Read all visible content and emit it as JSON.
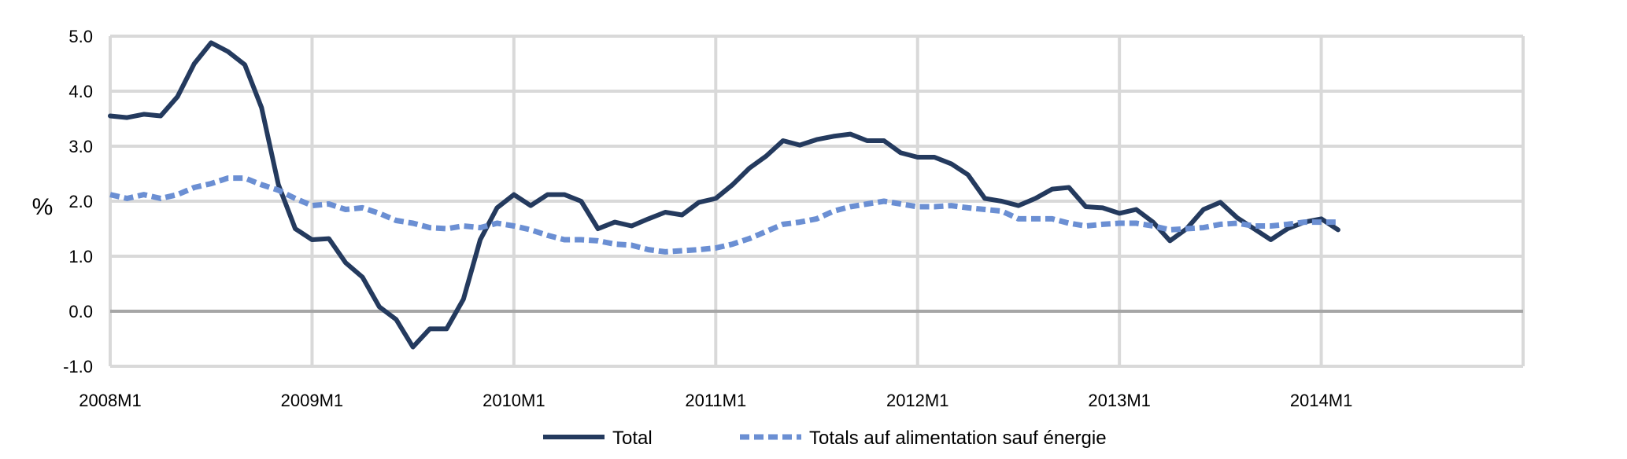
{
  "chart_data": {
    "type": "line",
    "ylabel": "%",
    "xlabel": "",
    "title": "",
    "ylim": [
      -1.0,
      5.0
    ],
    "yticks": [
      "-1.0",
      "0.0",
      "1.0",
      "2.0",
      "3.0",
      "4.0",
      "5.0"
    ],
    "x_tick_labels": [
      "2008M1",
      "2009M1",
      "2010M1",
      "2011M1",
      "2012M1",
      "2013M1",
      "2014M1"
    ],
    "x_start": "2008M1",
    "x_end": "2014M12",
    "grid": true,
    "legend_position": "bottom",
    "series": [
      {
        "name": "Total",
        "color": "#243a5e",
        "style": "solid",
        "values": [
          3.55,
          3.52,
          3.58,
          3.55,
          3.9,
          4.5,
          4.88,
          4.72,
          4.48,
          3.7,
          2.3,
          1.5,
          1.3,
          1.32,
          0.88,
          0.62,
          0.08,
          -0.15,
          -0.65,
          -0.32,
          -0.32,
          0.22,
          1.3,
          1.88,
          2.12,
          1.92,
          2.12,
          2.12,
          2.0,
          1.5,
          1.62,
          1.55,
          1.68,
          1.8,
          1.75,
          1.98,
          2.05,
          2.3,
          2.6,
          2.82,
          3.1,
          3.02,
          3.12,
          3.18,
          3.22,
          3.1,
          3.1,
          2.88,
          2.8,
          2.8,
          2.68,
          2.48,
          2.05,
          2.0,
          1.92,
          2.05,
          2.22,
          2.25,
          1.9,
          1.88,
          1.78,
          1.85,
          1.62,
          1.28,
          1.5,
          1.85,
          1.98,
          1.7,
          1.5,
          1.3,
          1.5,
          1.62,
          1.68,
          1.48
        ]
      },
      {
        "name": "Totals auf alimentation sauf énergie",
        "color": "#6b8fd3",
        "style": "dashed",
        "values": [
          2.12,
          2.05,
          2.12,
          2.05,
          2.12,
          2.25,
          2.32,
          2.42,
          2.42,
          2.3,
          2.2,
          2.05,
          1.92,
          1.95,
          1.85,
          1.88,
          1.78,
          1.65,
          1.6,
          1.52,
          1.5,
          1.55,
          1.52,
          1.6,
          1.55,
          1.48,
          1.38,
          1.3,
          1.3,
          1.28,
          1.22,
          1.2,
          1.12,
          1.08,
          1.1,
          1.12,
          1.15,
          1.22,
          1.32,
          1.45,
          1.58,
          1.62,
          1.68,
          1.82,
          1.9,
          1.95,
          2.0,
          1.95,
          1.9,
          1.9,
          1.92,
          1.88,
          1.85,
          1.82,
          1.68,
          1.68,
          1.68,
          1.6,
          1.55,
          1.58,
          1.6,
          1.6,
          1.55,
          1.48,
          1.5,
          1.52,
          1.58,
          1.6,
          1.55,
          1.55,
          1.58,
          1.62,
          1.62,
          1.62
        ]
      }
    ]
  }
}
